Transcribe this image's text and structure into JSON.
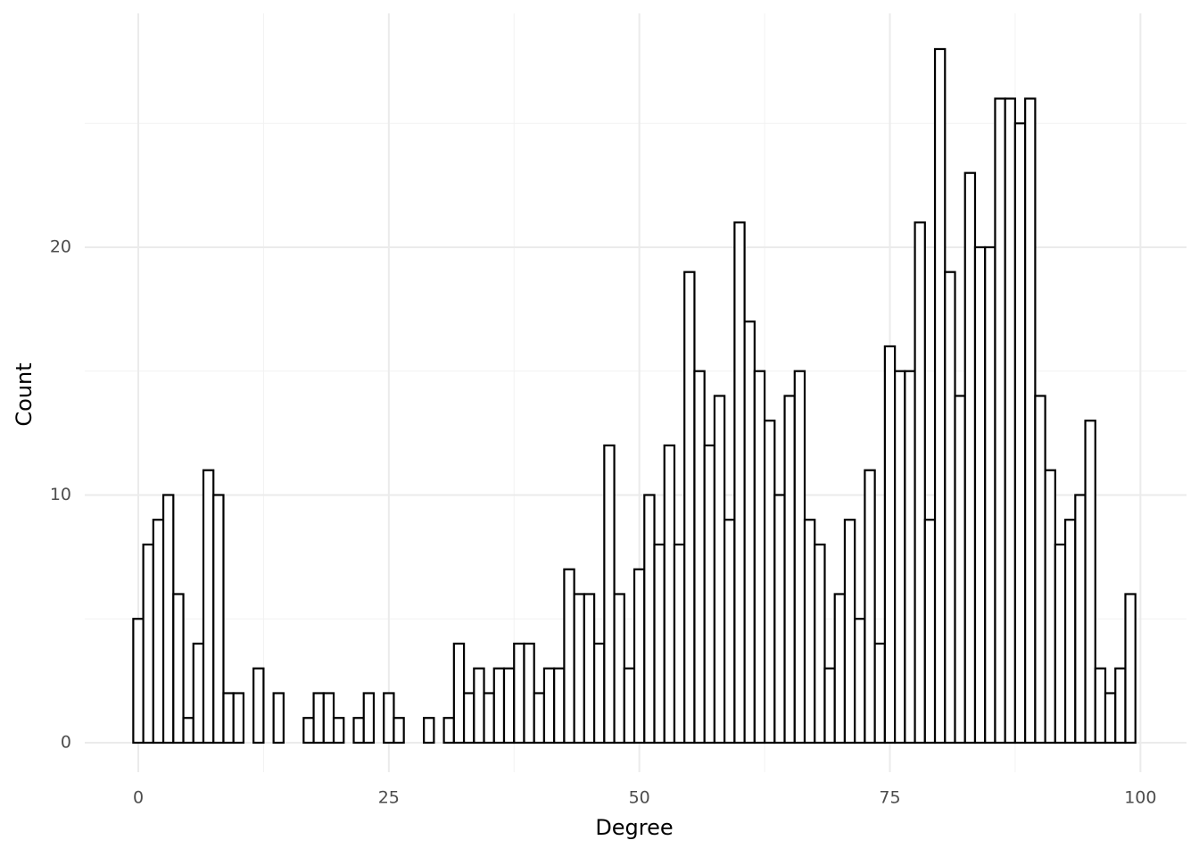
{
  "chart_data": {
    "type": "histogram",
    "x_label": "Degree",
    "y_label": "Count",
    "bins": [
      -0.5,
      0.5,
      1.5,
      2.5,
      3.5,
      4.5,
      5.5,
      6.5,
      7.5,
      8.5,
      9.5,
      10.5,
      11.5,
      12.5,
      13.5,
      14.5,
      15.5,
      16.5,
      17.5,
      18.5,
      19.5,
      20.5,
      21.5,
      22.5,
      23.5,
      24.5,
      25.5,
      26.5,
      27.5,
      28.5,
      29.5,
      30.5,
      31.5,
      32.5,
      33.5,
      34.5,
      35.5,
      36.5,
      37.5,
      38.5,
      39.5,
      40.5,
      41.5,
      42.5,
      43.5,
      44.5,
      45.5,
      46.5,
      47.5,
      48.5,
      49.5,
      50.5,
      51.5,
      52.5,
      53.5,
      54.5,
      55.5,
      56.5,
      57.5,
      58.5,
      59.5,
      60.5,
      61.5,
      62.5,
      63.5,
      64.5,
      65.5,
      66.5,
      67.5,
      68.5,
      69.5,
      70.5,
      71.5,
      72.5,
      73.5,
      74.5,
      75.5,
      76.5,
      77.5,
      78.5,
      79.5,
      80.5,
      81.5,
      82.5,
      83.5,
      84.5,
      85.5,
      86.5,
      87.5,
      88.5,
      89.5,
      90.5,
      91.5,
      92.5,
      93.5,
      94.5,
      95.5,
      96.5,
      97.5,
      98.5,
      99.5
    ],
    "values": [
      5,
      8,
      9,
      10,
      6,
      1,
      4,
      11,
      10,
      2,
      2,
      0,
      3,
      0,
      2,
      0,
      0,
      1,
      2,
      2,
      1,
      0,
      1,
      2,
      0,
      2,
      1,
      0,
      0,
      1,
      0,
      1,
      4,
      2,
      3,
      2,
      3,
      3,
      4,
      4,
      2,
      3,
      3,
      7,
      6,
      6,
      4,
      12,
      6,
      3,
      7,
      10,
      8,
      12,
      8,
      19,
      15,
      12,
      14,
      9,
      21,
      17,
      15,
      13,
      10,
      14,
      15,
      9,
      8,
      3,
      6,
      9,
      5,
      11,
      4,
      16,
      15,
      15,
      21,
      9,
      28,
      19,
      14,
      23,
      20,
      20,
      26,
      26,
      25,
      26,
      14,
      11,
      8,
      9,
      10,
      13,
      3,
      2,
      3,
      6
    ],
    "color": "#ffffff",
    "edge_color": "#000000",
    "xlim": [
      -5.34,
      104.6
    ],
    "ylim": [
      -1.19,
      29.44
    ],
    "xticks": [
      0,
      25,
      50,
      75,
      100
    ],
    "yticks": [
      0,
      10,
      20
    ],
    "grid": true
  }
}
